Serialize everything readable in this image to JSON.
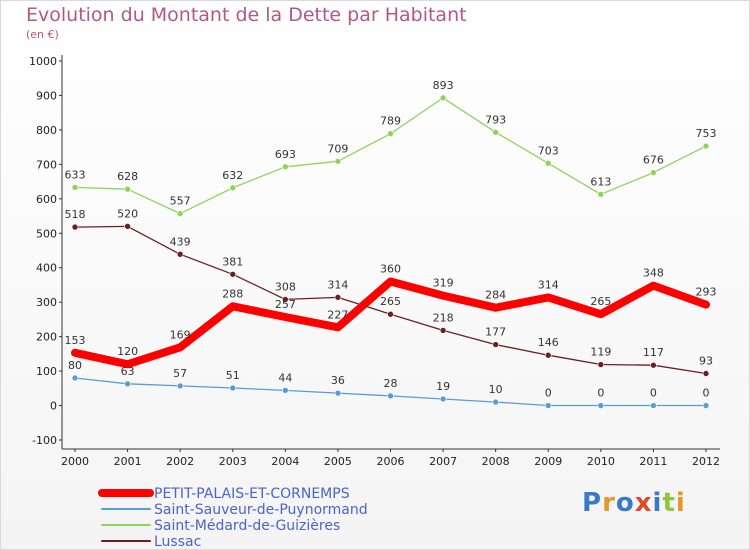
{
  "chart_data": {
    "type": "line",
    "title": "Evolution du Montant de la Dette par Habitant",
    "subtitle": "(en €)",
    "x": [
      "2000",
      "2001",
      "2002",
      "2003",
      "2004",
      "2005",
      "2006",
      "2007",
      "2008",
      "2009",
      "2010",
      "2011",
      "2012"
    ],
    "ylim": [
      -100,
      1000
    ],
    "yticks": [
      -100,
      0,
      100,
      200,
      300,
      400,
      500,
      600,
      700,
      800,
      900,
      1000
    ],
    "grid": false,
    "legend_position": "bottom-left",
    "series": [
      {
        "name": "PETIT-PALAIS-ET-CORNEMPS",
        "color": "#ff0000",
        "values": [
          153,
          120,
          169,
          288,
          257,
          227,
          360,
          319,
          284,
          314,
          265,
          348,
          293
        ]
      },
      {
        "name": "Saint-Sauveur-de-Puynormand",
        "color": "#5b9bd5",
        "values": [
          80,
          63,
          57,
          51,
          44,
          36,
          28,
          19,
          10,
          0,
          0,
          0,
          0
        ]
      },
      {
        "name": "Saint-Médard-de-Guizières",
        "color": "#8fd45a",
        "values": [
          633,
          628,
          557,
          632,
          693,
          709,
          789,
          893,
          793,
          703,
          613,
          676,
          753
        ]
      },
      {
        "name": "Lussac",
        "color": "#6b1f23",
        "values": [
          518,
          520,
          439,
          381,
          308,
          314,
          265,
          218,
          177,
          146,
          119,
          117,
          93
        ]
      }
    ]
  },
  "branding": {
    "logo_parts": [
      {
        "text": "P",
        "color": "#3a78c8"
      },
      {
        "text": "r",
        "color": "#e8962a"
      },
      {
        "text": "o",
        "color": "#3a78c8"
      },
      {
        "text": "x",
        "color": "#e04a2a"
      },
      {
        "text": "i",
        "color": "#3a78c8"
      },
      {
        "text": "t",
        "color": "#8dc63f"
      },
      {
        "text": "i",
        "color": "#e8962a"
      }
    ]
  }
}
